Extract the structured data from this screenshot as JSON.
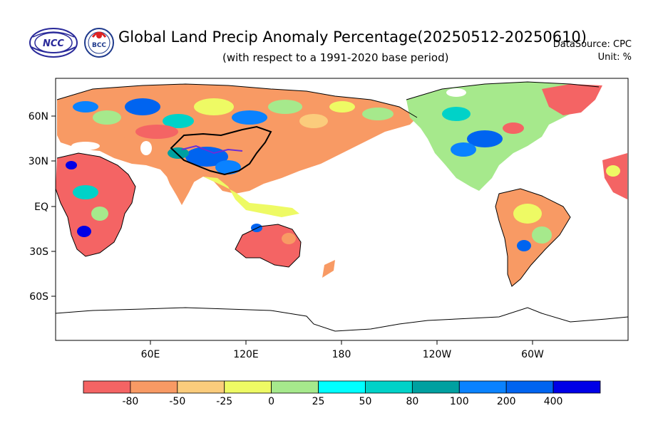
{
  "header": {
    "title": "Global Land Precip Anomaly Percentage(20250512-20250610)",
    "subtitle": "(with respect to a 1991-2020 base period)",
    "datasource": "DataSource:  CPC",
    "unit": "Unit:  %"
  },
  "logos": {
    "ncc": "NCC",
    "bcc": "BCC"
  },
  "axes": {
    "lat_labels": [
      "60N",
      "30N",
      "EQ",
      "30S",
      "60S"
    ],
    "lon_labels": [
      "60E",
      "120E",
      "180",
      "120W",
      "60W"
    ]
  },
  "colorbar": {
    "labels": [
      "-80",
      "-50",
      "-25",
      "0",
      "25",
      "50",
      "80",
      "100",
      "200",
      "400"
    ],
    "colors": [
      "#f46464",
      "#f89a64",
      "#fbcc7c",
      "#eefa64",
      "#a6e98c",
      "#00ffff",
      "#00d2c8",
      "#00a0a0",
      "#0a82ff",
      "#0064f0",
      "#0000e6"
    ]
  },
  "palette": {
    "dry": "#f46464",
    "moderate_dry": "#f89a64",
    "slightly_dry": "#fbcc7c",
    "normal": "#eefa64",
    "wet": "#a6e98c",
    "very_wet": "#0a82ff"
  }
}
